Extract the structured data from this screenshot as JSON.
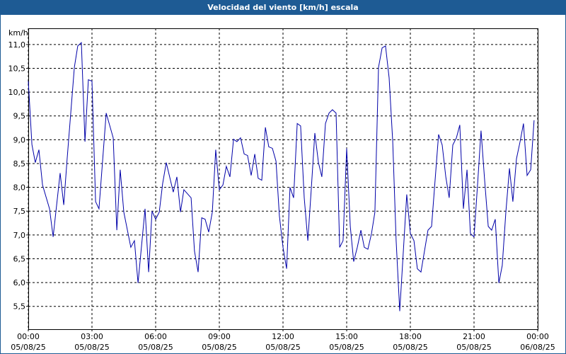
{
  "chart_data": {
    "type": "line",
    "title": "Velocidad del viento [km/h] escala",
    "y_label": "km/h",
    "x": [
      0,
      0.17,
      0.33,
      0.5,
      0.67,
      1.0,
      1.17,
      1.5,
      1.67,
      1.83,
      2.17,
      2.33,
      2.5,
      2.67,
      2.83,
      3.0,
      3.17,
      3.33,
      3.67,
      4.0,
      4.17,
      4.33,
      4.5,
      4.83,
      5.0,
      5.17,
      5.5,
      5.67,
      5.83,
      6.0,
      6.17,
      6.33,
      6.5,
      6.83,
      7.0,
      7.17,
      7.33,
      7.67,
      7.83,
      8.0,
      8.17,
      8.33,
      8.5,
      8.67,
      8.83,
      9.0,
      9.17,
      9.33,
      9.5,
      9.67,
      9.83,
      10.0,
      10.17,
      10.33,
      10.5,
      10.67,
      10.83,
      11.0,
      11.17,
      11.33,
      11.5,
      11.67,
      11.83,
      12.0,
      12.17,
      12.33,
      12.5,
      12.67,
      12.83,
      13.0,
      13.17,
      13.33,
      13.5,
      13.67,
      13.83,
      14.0,
      14.17,
      14.33,
      14.5,
      14.67,
      14.83,
      15.0,
      15.17,
      15.33,
      15.5,
      15.67,
      15.83,
      16.0,
      16.17,
      16.33,
      16.5,
      16.67,
      16.83,
      17.0,
      17.17,
      17.33,
      17.5,
      17.67,
      17.83,
      18.0,
      18.17,
      18.33,
      18.5,
      18.83,
      19.0,
      19.33,
      19.5,
      19.67,
      19.83,
      20.0,
      20.17,
      20.33,
      20.5,
      20.67,
      20.83,
      21.0,
      21.17,
      21.33,
      21.5,
      21.67,
      21.83,
      22.0,
      22.17,
      22.33,
      22.5,
      22.67,
      22.83,
      23.0,
      23.17,
      23.33,
      23.5,
      23.67,
      23.83
    ],
    "series": [
      {
        "name": "Velocidad del viento",
        "color": "#0000a8",
        "values": [
          10.23,
          8.9,
          8.52,
          8.79,
          8.05,
          7.55,
          6.96,
          8.3,
          7.63,
          8.6,
          10.52,
          10.97,
          11.04,
          8.96,
          10.26,
          10.23,
          7.7,
          7.55,
          9.56,
          9.04,
          7.1,
          8.37,
          7.48,
          6.74,
          6.88,
          5.99,
          7.55,
          6.22,
          7.5,
          7.33,
          7.48,
          8.08,
          8.52,
          7.9,
          8.22,
          7.48,
          7.95,
          7.78,
          6.66,
          6.22,
          7.36,
          7.33,
          7.06,
          7.48,
          8.79,
          7.95,
          8.05,
          8.44,
          8.22,
          9.01,
          8.96,
          9.04,
          8.7,
          8.67,
          8.25,
          8.7,
          8.19,
          8.15,
          9.26,
          8.85,
          8.82,
          8.55,
          7.4,
          6.74,
          6.29,
          8.0,
          7.78,
          9.34,
          9.29,
          7.78,
          6.88,
          7.95,
          9.14,
          8.52,
          8.22,
          9.34,
          9.56,
          9.63,
          9.56,
          6.74,
          6.88,
          8.82,
          7.18,
          6.44,
          6.74,
          7.1,
          6.74,
          6.7,
          7.03,
          7.48,
          10.52,
          10.93,
          10.97,
          10.3,
          8.96,
          6.88,
          5.4,
          6.66,
          7.85,
          7.03,
          6.88,
          6.29,
          6.22,
          7.1,
          7.18,
          9.11,
          8.89,
          8.22,
          7.78,
          8.89,
          9.04,
          9.31,
          7.55,
          8.37,
          7.03,
          6.96,
          8.08,
          9.19,
          8.15,
          7.18,
          7.1,
          7.33,
          5.99,
          6.36,
          7.48,
          8.4,
          7.7,
          8.6,
          8.96,
          9.34,
          8.25,
          8.37,
          9.41
        ]
      }
    ],
    "xlim": [
      0,
      24
    ],
    "xticks": [
      {
        "value": 0,
        "label": "00:00",
        "date": "05/08/25"
      },
      {
        "value": 3,
        "label": "03:00",
        "date": "05/08/25"
      },
      {
        "value": 6,
        "label": "06:00",
        "date": "05/08/25"
      },
      {
        "value": 9,
        "label": "09:00",
        "date": "05/08/25"
      },
      {
        "value": 12,
        "label": "12:00",
        "date": "05/08/25"
      },
      {
        "value": 15,
        "label": "15:00",
        "date": "05/08/25"
      },
      {
        "value": 18,
        "label": "18:00",
        "date": "05/08/25"
      },
      {
        "value": 21,
        "label": "21:00",
        "date": "05/08/25"
      },
      {
        "value": 24,
        "label": "00:00",
        "date": "06/08/25"
      }
    ],
    "ylim": [
      5.02,
      11.34
    ],
    "yticks": [
      {
        "value": 5.5,
        "label": "5,5"
      },
      {
        "value": 6,
        "label": "6,0"
      },
      {
        "value": 6.5,
        "label": "6,5"
      },
      {
        "value": 7,
        "label": "7,0"
      },
      {
        "value": 7.5,
        "label": "7,5"
      },
      {
        "value": 8,
        "label": "8,0"
      },
      {
        "value": 8.5,
        "label": "8,5"
      },
      {
        "value": 9,
        "label": "9,0"
      },
      {
        "value": 9.5,
        "label": "9,5"
      },
      {
        "value": 10,
        "label": "10,0"
      },
      {
        "value": 10.5,
        "label": "10,5"
      },
      {
        "value": 11,
        "label": "11,0"
      }
    ],
    "grid": true
  }
}
